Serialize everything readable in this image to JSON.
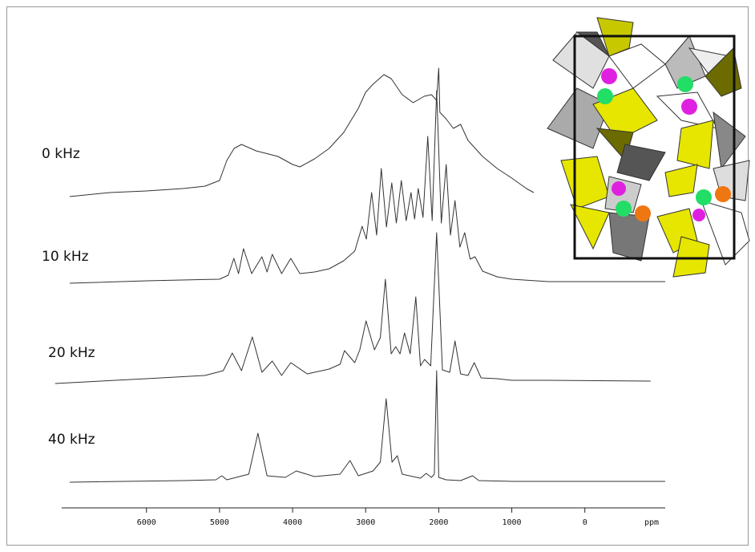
{
  "chart_data": {
    "type": "line",
    "xlabel": "ppm",
    "xlim": [
      7160,
      -1100
    ],
    "xticks": [
      6000,
      5000,
      4000,
      3000,
      2000,
      1000,
      0
    ],
    "series": [
      {
        "name": "0 kHz",
        "color": "#333333",
        "x": [
          7050,
          6500,
          6000,
          5500,
          5200,
          5000,
          4900,
          4800,
          4700,
          4500,
          4200,
          4000,
          3900,
          3700,
          3500,
          3300,
          3100,
          3000,
          2900,
          2750,
          2650,
          2500,
          2350,
          2200,
          2100,
          2030,
          2000,
          1985,
          1900,
          1800,
          1700,
          1600,
          1400,
          1200,
          1000,
          800,
          700
        ],
        "values": [
          0,
          5,
          7,
          10,
          13,
          20,
          45,
          60,
          65,
          57,
          50,
          40,
          37,
          47,
          60,
          80,
          110,
          130,
          140,
          152,
          147,
          127,
          117,
          125,
          127,
          120,
          160,
          105,
          97,
          85,
          90,
          70,
          50,
          35,
          23,
          10,
          5
        ]
      },
      {
        "name": "10 kHz",
        "color": "#333333",
        "x": [
          7050,
          6000,
          5000,
          4880,
          4804,
          4740,
          4672,
          4560,
          4420,
          4350,
          4278,
          4150,
          4025,
          3900,
          3700,
          3500,
          3300,
          3150,
          3049,
          2990,
          2918,
          2850,
          2786,
          2715,
          2643,
          2580,
          2512,
          2445,
          2380,
          2330,
          2281,
          2215,
          2150,
          2090,
          2029,
          1965,
          1898,
          1840,
          1777,
          1710,
          1645,
          1570,
          1503,
          1400,
          1200,
          1000,
          500,
          0,
          -1100
        ],
        "values": [
          0,
          3,
          5,
          10,
          31,
          12,
          43,
          12,
          33,
          14,
          36,
          12,
          31,
          12,
          14,
          18,
          28,
          40,
          71,
          55,
          113,
          60,
          143,
          70,
          125,
          75,
          128,
          78,
          113,
          80,
          118,
          82,
          183,
          78,
          240,
          75,
          148,
          60,
          103,
          45,
          63,
          30,
          33,
          15,
          8,
          5,
          2,
          2,
          2
        ]
      },
      {
        "name": "20 kHz",
        "color": "#333333",
        "x": [
          7250,
          6000,
          5200,
          4950,
          4826,
          4700,
          4552,
          4420,
          4278,
          4150,
          4025,
          3800,
          3500,
          3350,
          3290,
          3150,
          3080,
          2995,
          2880,
          2800,
          2731,
          2650,
          2589,
          2530,
          2468,
          2390,
          2314,
          2250,
          2194,
          2110,
          2029,
          1950,
          1850,
          1777,
          1700,
          1600,
          1514,
          1420,
          1200,
          1000,
          500,
          -900
        ],
        "values": [
          -2,
          4,
          8,
          14,
          36,
          14,
          56,
          12,
          26,
          8,
          24,
          10,
          16,
          22,
          39,
          24,
          40,
          76,
          40,
          55,
          128,
          35,
          44,
          35,
          61,
          35,
          106,
          20,
          28,
          20,
          186,
          15,
          12,
          51,
          10,
          8,
          24,
          5,
          4,
          2,
          2,
          1
        ]
      },
      {
        "name": "40 kHz",
        "color": "#333333",
        "x": [
          7050,
          5500,
          5050,
          4968,
          4900,
          4600,
          4475,
          4350,
          4100,
          3949,
          3700,
          3350,
          3214,
          3100,
          2900,
          2800,
          2720,
          2640,
          2567,
          2500,
          2250,
          2172,
          2100,
          2060,
          2029,
          2000,
          1900,
          1700,
          1536,
          1450,
          1000,
          -1100
        ],
        "values": [
          0,
          2,
          3,
          8,
          3,
          10,
          61,
          8,
          6,
          14,
          7,
          10,
          27,
          8,
          14,
          25,
          104,
          25,
          33,
          10,
          5,
          11,
          6,
          10,
          139,
          6,
          3,
          2,
          8,
          2,
          1,
          1
        ]
      }
    ]
  }
}
